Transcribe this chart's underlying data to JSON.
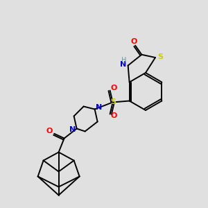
{
  "background_color": "#e0e0e0",
  "bond_color": "#000000",
  "colors": {
    "N": "#0000cc",
    "O": "#ff0000",
    "S_thio": "#cccc00",
    "S_sulf": "#cccc00",
    "H": "#6a9a9a",
    "C": "#000000"
  },
  "figsize": [
    3.0,
    3.0
  ],
  "dpi": 100
}
